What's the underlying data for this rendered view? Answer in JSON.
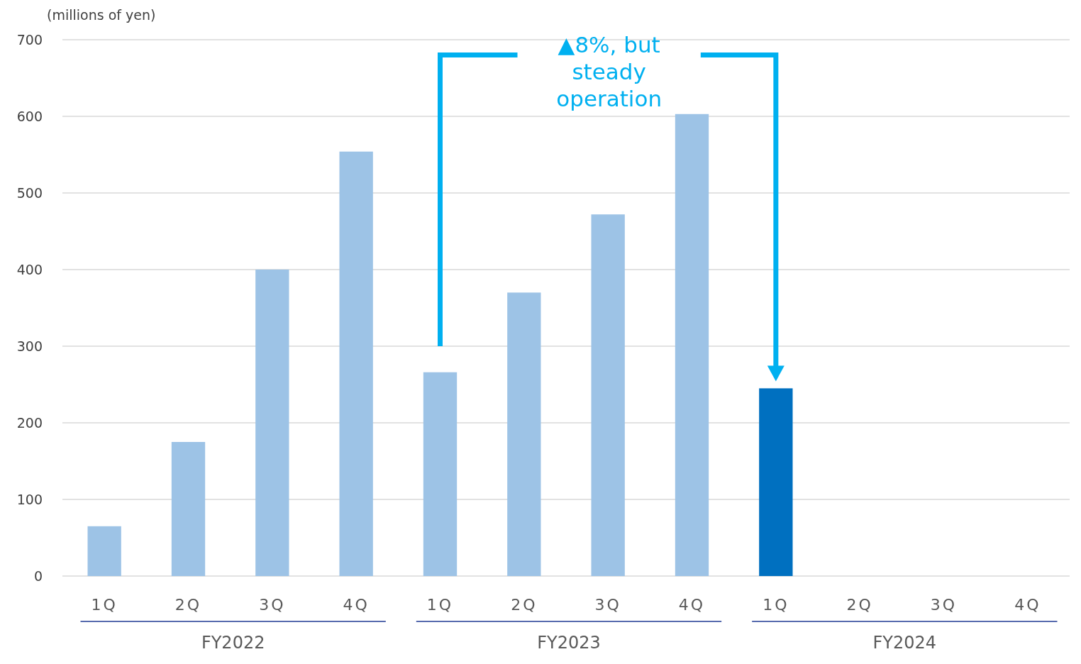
{
  "chart_data": {
    "type": "bar",
    "ylabel": "(millions of yen)",
    "categories": [
      "1Q",
      "2Q",
      "3Q",
      "4Q",
      "1Q",
      "2Q",
      "3Q",
      "4Q",
      "1Q",
      "2Q",
      "3Q",
      "4Q"
    ],
    "values": [
      65,
      175,
      400,
      554,
      266,
      370,
      472,
      603,
      245,
      null,
      null,
      null
    ],
    "colors": [
      "#9dc3e6",
      "#9dc3e6",
      "#9dc3e6",
      "#9dc3e6",
      "#9dc3e6",
      "#9dc3e6",
      "#9dc3e6",
      "#9dc3e6",
      "#0070c0",
      null,
      null,
      null
    ],
    "ylim": [
      0,
      700
    ],
    "yticks": [
      0,
      100,
      200,
      300,
      400,
      500,
      600,
      700
    ],
    "grid": "y",
    "annotations": [
      "▲8%, but steady operation",
      "FY2022",
      "FY2023",
      "FY2024"
    ]
  }
}
